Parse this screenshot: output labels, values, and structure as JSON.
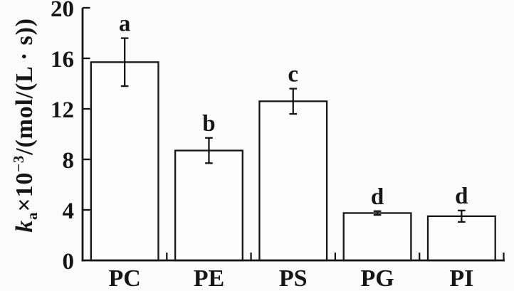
{
  "figure": {
    "background": "#fbfbfb",
    "ink": "#161616",
    "bar_fill": "#fdfdfd"
  },
  "chart_data": {
    "type": "bar",
    "title": "",
    "xlabel": "",
    "ylabel": "ka×10−3/(mol/(L · s))",
    "ylabel_rich": [
      {
        "t": "k",
        "s": "italic"
      },
      {
        "t": "a",
        "s": "sub"
      },
      {
        "t": "×10",
        "s": ""
      },
      {
        "t": "−3",
        "s": "sup"
      },
      {
        "t": "/(mol/(L · s))",
        "s": ""
      }
    ],
    "categories": [
      "PC",
      "PE",
      "PS",
      "PG",
      "PI"
    ],
    "values": [
      15.7,
      8.7,
      12.6,
      3.75,
      3.5
    ],
    "errors": [
      1.9,
      1.0,
      1.0,
      0.15,
      0.45
    ],
    "bar_labels": [
      "a",
      "b",
      "c",
      "d",
      "d"
    ],
    "yticks": [
      0,
      4,
      8,
      12,
      16,
      20
    ],
    "ylim": [
      0,
      20
    ],
    "grid": false,
    "legend": null
  }
}
